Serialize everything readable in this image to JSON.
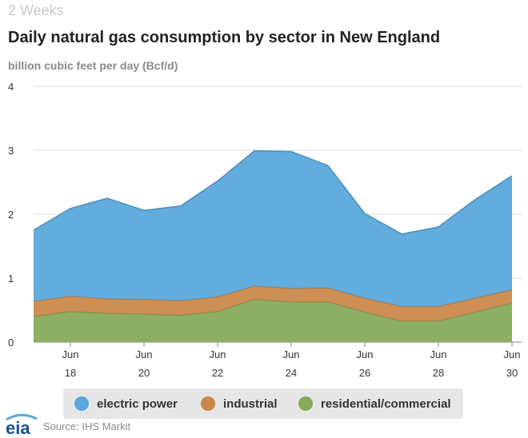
{
  "header": {
    "period": "2 Weeks",
    "title": "Daily natural gas consumption by sector in New England",
    "units": "billion cubic feet per day (Bcf/d)"
  },
  "footer": {
    "logo_text": "eia",
    "source": "Source: IHS Markit"
  },
  "colors": {
    "electric_power": "#5aa8dc",
    "industrial": "#c9884a",
    "residential_commercial": "#86ab5b"
  },
  "chart_data": {
    "type": "area",
    "stacked": true,
    "title": "Daily natural gas consumption by sector in New England",
    "ylabel": "billion cubic feet per day (Bcf/d)",
    "ylim": [
      0,
      4
    ],
    "yticks": [
      "0",
      "1",
      "2",
      "3",
      "4"
    ],
    "grid": true,
    "legend_position": "bottom",
    "x": [
      "Jun 17",
      "Jun 18",
      "Jun 19",
      "Jun 20",
      "Jun 21",
      "Jun 22",
      "Jun 23",
      "Jun 24",
      "Jun 25",
      "Jun 26",
      "Jun 27",
      "Jun 28",
      "Jun 29",
      "Jun 30"
    ],
    "xticks": [
      {
        "month": "Jun",
        "day": "18"
      },
      {
        "month": "Jun",
        "day": "20"
      },
      {
        "month": "Jun",
        "day": "22"
      },
      {
        "month": "Jun",
        "day": "24"
      },
      {
        "month": "Jun",
        "day": "26"
      },
      {
        "month": "Jun",
        "day": "28"
      },
      {
        "month": "Jun",
        "day": "30"
      }
    ],
    "series": [
      {
        "name": "residential/commercial",
        "color": "#86ab5b",
        "values": [
          0.4,
          0.48,
          0.45,
          0.44,
          0.42,
          0.48,
          0.67,
          0.63,
          0.63,
          0.47,
          0.33,
          0.33,
          0.47,
          0.61
        ]
      },
      {
        "name": "industrial",
        "color": "#c9884a",
        "values": [
          0.24,
          0.24,
          0.23,
          0.23,
          0.23,
          0.23,
          0.21,
          0.21,
          0.22,
          0.22,
          0.23,
          0.23,
          0.22,
          0.21
        ]
      },
      {
        "name": "electric power",
        "color": "#5aa8dc",
        "values": [
          1.11,
          1.37,
          1.57,
          1.39,
          1.48,
          1.81,
          2.11,
          2.14,
          1.91,
          1.32,
          1.13,
          1.24,
          1.54,
          1.78
        ]
      }
    ]
  },
  "legend": {
    "items": [
      {
        "label": "electric power",
        "color": "#5aa8dc"
      },
      {
        "label": "industrial",
        "color": "#c9884a"
      },
      {
        "label": "residential/commercial",
        "color": "#86ab5b"
      }
    ]
  }
}
